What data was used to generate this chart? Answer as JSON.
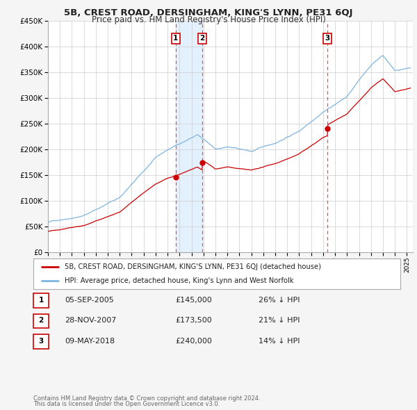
{
  "title": "5B, CREST ROAD, DERSINGHAM, KING'S LYNN, PE31 6QJ",
  "subtitle": "Price paid vs. HM Land Registry's House Price Index (HPI)",
  "sales": [
    {
      "num": 1,
      "date": "05-SEP-2005",
      "year": 2005.68,
      "price": 145000,
      "label": "26% ↓ HPI"
    },
    {
      "num": 2,
      "date": "28-NOV-2007",
      "year": 2007.91,
      "price": 173500,
      "label": "21% ↓ HPI"
    },
    {
      "num": 3,
      "date": "09-MAY-2018",
      "year": 2018.36,
      "price": 240000,
      "label": "14% ↓ HPI"
    }
  ],
  "hpi_line_color": "#7eb5e0",
  "sale_line_color": "#cc0000",
  "vline_color": "#dd4444",
  "vband_color": "#ddeeff",
  "background_color": "#f5f5f5",
  "plot_bg_color": "#ffffff",
  "ylim": [
    0,
    450000
  ],
  "xlim_start": 1995.0,
  "xlim_end": 2025.5,
  "legend_line1": "5B, CREST ROAD, DERSINGHAM, KING'S LYNN, PE31 6QJ (detached house)",
  "legend_line2": "HPI: Average price, detached house, King's Lynn and West Norfolk",
  "footer1": "Contains HM Land Registry data © Crown copyright and database right 2024.",
  "footer2": "This data is licensed under the Open Government Licence v3.0."
}
